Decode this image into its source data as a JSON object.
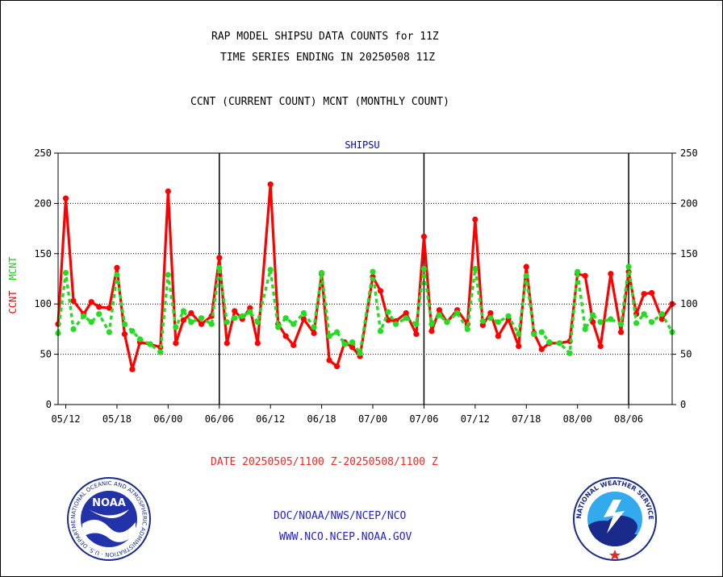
{
  "header": {
    "line1": "RAP MODEL SHIPSU DATA COUNTS for 11Z",
    "line2": "TIME SERIES ENDING IN 20250508 11Z",
    "line3": "CCNT (CURRENT COUNT) MCNT (MONTHLY COUNT)"
  },
  "footer": {
    "date_range": "DATE 20250505/1100 Z-20250508/1100 Z",
    "link1": "DOC/NOAA/NWS/NCEP/NCO",
    "link2": "WWW.NCO.NCEP.NOAA.GOV"
  },
  "logos": {
    "noaa_text": "NOAA",
    "noaa_ring": "NATIONAL OCEANIC AND ATMOSPHERIC ADMINISTRATION · U.S. DEPARTMENT OF COMMERCE ·",
    "nws_ring": "NATIONAL WEATHER SERVICE"
  },
  "colors": {
    "ccnt": "#ff0000",
    "mcnt": "#22dd22",
    "label_blue": "#0000cc"
  },
  "chart_data": {
    "type": "line",
    "title": "SHIPSU",
    "ylabel_ccnt": "CCNT",
    "ylabel_mcnt": "MCNT",
    "ylim": [
      0,
      250
    ],
    "yticks": [
      0,
      50,
      100,
      150,
      200,
      250
    ],
    "xlim": [
      0,
      120
    ],
    "xticks": [
      {
        "label": "05/12",
        "x": 1.5
      },
      {
        "label": "05/18",
        "x": 11.5
      },
      {
        "label": "06/00",
        "x": 21.5
      },
      {
        "label": "06/06",
        "x": 31.5
      },
      {
        "label": "06/12",
        "x": 41.5
      },
      {
        "label": "06/18",
        "x": 51.5
      },
      {
        "label": "07/00",
        "x": 61.5
      },
      {
        "label": "07/06",
        "x": 71.5
      },
      {
        "label": "07/12",
        "x": 81.5
      },
      {
        "label": "07/18",
        "x": 91.5
      },
      {
        "label": "08/00",
        "x": 101.5
      },
      {
        "label": "08/06",
        "x": 111.5
      }
    ],
    "day_boundaries": [
      31.5,
      71.5,
      111.5
    ],
    "series": [
      {
        "name": "CCNT",
        "x": [
          0,
          1.5,
          3,
          5,
          6.5,
          8,
          10,
          11.5,
          13,
          14.5,
          16,
          18,
          20,
          21.5,
          23,
          24.5,
          26,
          28,
          30,
          31.5,
          33,
          34.5,
          36,
          37.5,
          39,
          41.5,
          43,
          44.5,
          46,
          48,
          50,
          51.5,
          53,
          54.5,
          56,
          57.5,
          59,
          61.5,
          63,
          64.5,
          66,
          68,
          70,
          71.5,
          73,
          74.5,
          76,
          78,
          80,
          81.5,
          83,
          84.5,
          86,
          88,
          90,
          91.5,
          93,
          94.5,
          96,
          98,
          100,
          101.5,
          103,
          104.5,
          106,
          108,
          110,
          111.5,
          113,
          114.5,
          116,
          118,
          120
        ],
        "values": [
          80,
          205,
          103,
          90,
          102,
          97,
          96,
          136,
          70,
          35,
          62,
          60,
          57,
          212,
          61,
          84,
          91,
          80,
          88,
          146,
          61,
          93,
          85,
          96,
          61,
          219,
          80,
          68,
          59,
          85,
          71,
          130,
          44,
          38,
          62,
          57,
          48,
          127,
          113,
          84,
          83,
          91,
          70,
          167,
          73,
          94,
          82,
          94,
          80,
          184,
          79,
          91,
          68,
          85,
          58,
          137,
          71,
          55,
          61,
          61,
          63,
          130,
          128,
          82,
          58,
          130,
          72,
          132,
          90,
          110,
          111,
          85,
          100
        ]
      },
      {
        "name": "MCNT",
        "x": [
          0,
          1.5,
          3,
          5,
          6.5,
          8,
          10,
          11.5,
          13,
          14.5,
          16,
          18,
          20,
          21.5,
          23,
          24.5,
          26,
          28,
          30,
          31.5,
          33,
          34.5,
          36,
          37.5,
          39,
          41.5,
          43,
          44.5,
          46,
          48,
          50,
          51.5,
          53,
          54.5,
          56,
          57.5,
          59,
          61.5,
          63,
          64.5,
          66,
          68,
          70,
          71.5,
          73,
          74.5,
          76,
          78,
          80,
          81.5,
          83,
          84.5,
          86,
          88,
          90,
          91.5,
          93,
          94.5,
          96,
          98,
          100,
          101.5,
          103,
          104.5,
          106,
          108,
          110,
          111.5,
          113,
          114.5,
          116,
          118,
          120
        ],
        "values": [
          71,
          131,
          75,
          88,
          82,
          90,
          72,
          129,
          80,
          73,
          65,
          60,
          52,
          129,
          77,
          93,
          82,
          86,
          80,
          136,
          82,
          86,
          88,
          92,
          82,
          134,
          77,
          86,
          80,
          91,
          77,
          131,
          68,
          72,
          60,
          62,
          51,
          132,
          73,
          92,
          80,
          86,
          80,
          135,
          80,
          89,
          82,
          91,
          75,
          135,
          83,
          86,
          82,
          88,
          70,
          128,
          70,
          72,
          62,
          61,
          51,
          132,
          75,
          89,
          82,
          85,
          80,
          137,
          81,
          90,
          82,
          90,
          72
        ]
      }
    ]
  }
}
